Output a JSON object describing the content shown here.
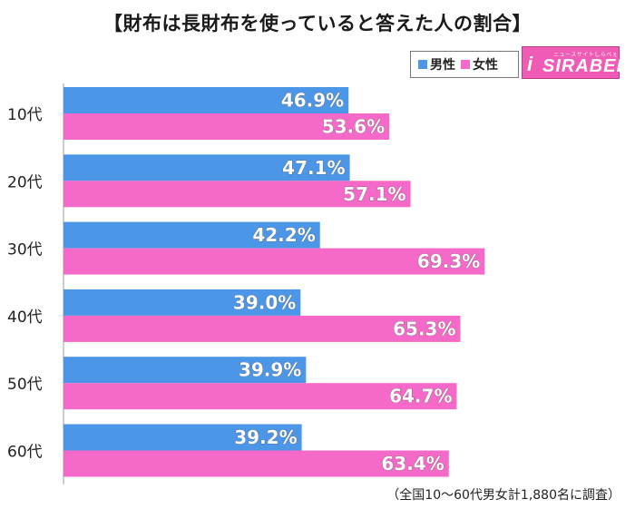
{
  "title": "【財布は長財布を使っていると答えた人の割合】",
  "legend": [
    {
      "label": "男性",
      "color": "#4c96e8"
    },
    {
      "label": "女性",
      "color": "#f569c8"
    }
  ],
  "logo": {
    "small": "ニュースサイトしらべぇ",
    "text": "SIRABEE",
    "mark": "i"
  },
  "footnote": "（全国10～60代男女計1,880名に調査）",
  "chart_data": {
    "type": "bar",
    "orientation": "horizontal",
    "categories": [
      "10代",
      "20代",
      "30代",
      "40代",
      "50代",
      "60代"
    ],
    "series": [
      {
        "name": "男性",
        "color": "#4c96e8",
        "values": [
          46.9,
          47.1,
          42.2,
          39.0,
          39.9,
          39.2
        ]
      },
      {
        "name": "女性",
        "color": "#f569c8",
        "values": [
          53.6,
          57.1,
          69.3,
          65.3,
          64.7,
          63.4
        ]
      }
    ],
    "xlim": [
      0,
      100
    ],
    "value_labels": [
      "46.9%",
      "53.6%",
      "47.1%",
      "57.1%",
      "42.2%",
      "69.3%",
      "39.0%",
      "65.3%",
      "39.9%",
      "64.7%",
      "39.2%",
      "63.4%"
    ]
  }
}
